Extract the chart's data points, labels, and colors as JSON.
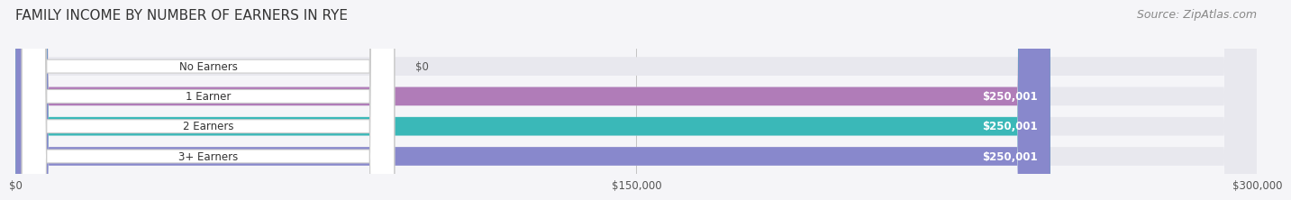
{
  "title": "FAMILY INCOME BY NUMBER OF EARNERS IN RYE",
  "source": "Source: ZipAtlas.com",
  "categories": [
    "No Earners",
    "1 Earner",
    "2 Earners",
    "3+ Earners"
  ],
  "values": [
    0,
    250001,
    250001,
    250001
  ],
  "bar_colors": [
    "#a8c8e8",
    "#b07cb8",
    "#3ab8b8",
    "#8888cc"
  ],
  "bar_bg_color": "#e8e8ee",
  "xlim": [
    0,
    300000
  ],
  "xticks": [
    0,
    150000,
    300000
  ],
  "xtick_labels": [
    "$0",
    "$150,000",
    "$300,000"
  ],
  "value_labels": [
    "$0",
    "$250,001",
    "$250,001",
    "$250,001"
  ],
  "background_color": "#f5f5f8",
  "title_fontsize": 11,
  "source_fontsize": 9
}
